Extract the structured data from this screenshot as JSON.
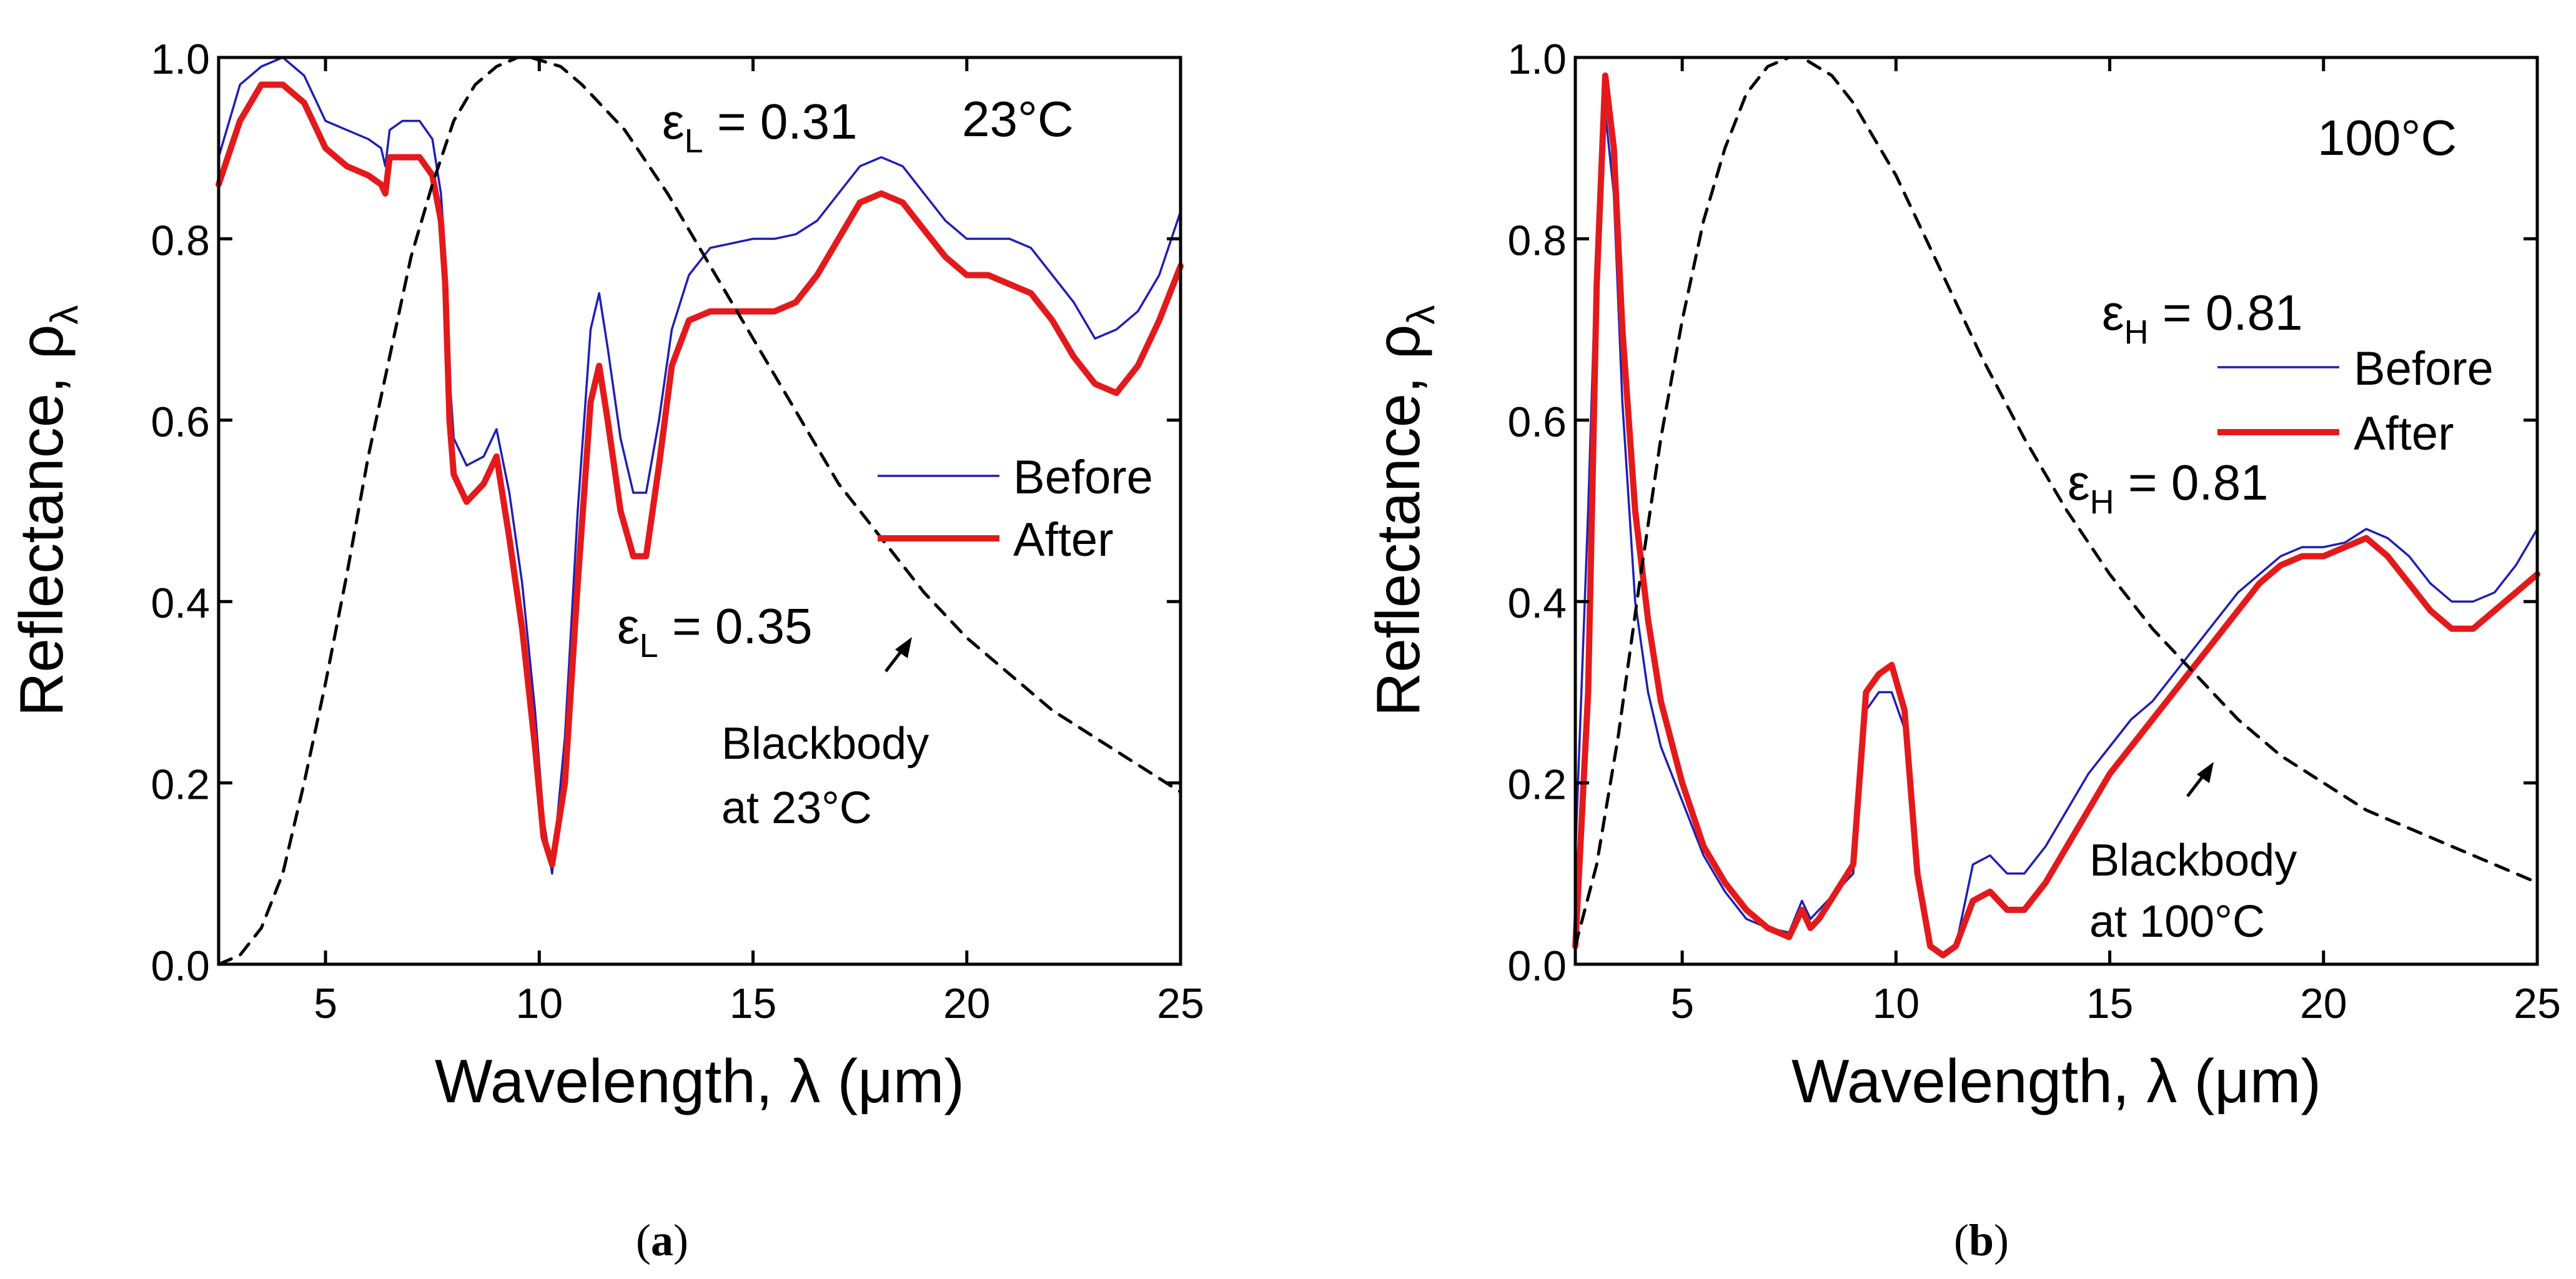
{
  "figure": {
    "captions": [
      {
        "open": "(",
        "letter": "a",
        "close": ")"
      },
      {
        "open": "(",
        "letter": "b",
        "close": ")"
      }
    ]
  },
  "chart_data": [
    {
      "type": "line",
      "panel": "a",
      "xlabel": "Wavelength, λ (μm)",
      "ylabel_main": "Reflectance, ρ",
      "ylabel_sub": "λ",
      "xlim": [
        2.5,
        25
      ],
      "ylim": [
        0,
        1
      ],
      "xticks": [
        5,
        10,
        15,
        20,
        25
      ],
      "yticks": [
        0.0,
        0.2,
        0.4,
        0.6,
        0.8,
        1.0
      ],
      "ytick_labels": [
        "0.0",
        "0.2",
        "0.4",
        "0.6",
        "0.8",
        "1.0"
      ],
      "legend": {
        "position": "center-right",
        "entries": [
          "Before",
          "After"
        ]
      },
      "series": [
        {
          "name": "Before",
          "color": "#1f1fb4",
          "style": "solid-thin",
          "x": [
            2.5,
            3.0,
            3.5,
            4.0,
            4.5,
            5.0,
            5.5,
            6.0,
            6.3,
            6.4,
            6.5,
            6.8,
            7.2,
            7.5,
            7.7,
            7.8,
            7.9,
            8.0,
            8.3,
            8.7,
            9.0,
            9.3,
            9.6,
            9.9,
            10.1,
            10.3,
            10.6,
            10.9,
            11.2,
            11.4,
            11.6,
            11.9,
            12.2,
            12.5,
            12.8,
            13.1,
            13.5,
            14.0,
            14.5,
            15.0,
            15.5,
            16.0,
            16.5,
            17.0,
            17.5,
            18.0,
            18.5,
            19.0,
            19.5,
            20.0,
            20.5,
            21.0,
            21.5,
            22.0,
            22.5,
            23.0,
            23.5,
            24.0,
            24.5,
            25.0
          ],
          "y": [
            0.89,
            0.97,
            0.99,
            1.0,
            0.98,
            0.93,
            0.92,
            0.91,
            0.9,
            0.88,
            0.92,
            0.93,
            0.93,
            0.91,
            0.85,
            0.78,
            0.65,
            0.58,
            0.55,
            0.56,
            0.59,
            0.52,
            0.42,
            0.28,
            0.16,
            0.1,
            0.25,
            0.5,
            0.7,
            0.74,
            0.68,
            0.58,
            0.52,
            0.52,
            0.6,
            0.7,
            0.76,
            0.79,
            0.795,
            0.8,
            0.8,
            0.805,
            0.82,
            0.85,
            0.88,
            0.89,
            0.88,
            0.85,
            0.82,
            0.8,
            0.8,
            0.8,
            0.79,
            0.76,
            0.73,
            0.69,
            0.7,
            0.72,
            0.76,
            0.83
          ]
        },
        {
          "name": "After",
          "color": "#e31a1c",
          "style": "solid-thick",
          "x": [
            2.5,
            3.0,
            3.5,
            4.0,
            4.5,
            5.0,
            5.5,
            6.0,
            6.3,
            6.4,
            6.5,
            6.8,
            7.2,
            7.5,
            7.7,
            7.8,
            7.9,
            8.0,
            8.3,
            8.7,
            9.0,
            9.3,
            9.6,
            9.9,
            10.1,
            10.3,
            10.6,
            10.9,
            11.2,
            11.4,
            11.6,
            11.9,
            12.2,
            12.5,
            12.8,
            13.1,
            13.5,
            14.0,
            14.5,
            15.0,
            15.5,
            16.0,
            16.5,
            17.0,
            17.5,
            18.0,
            18.5,
            19.0,
            19.5,
            20.0,
            20.5,
            21.0,
            21.5,
            22.0,
            22.5,
            23.0,
            23.5,
            24.0,
            24.5,
            25.0
          ],
          "y": [
            0.86,
            0.93,
            0.97,
            0.97,
            0.95,
            0.9,
            0.88,
            0.87,
            0.86,
            0.85,
            0.89,
            0.89,
            0.89,
            0.87,
            0.82,
            0.75,
            0.6,
            0.54,
            0.51,
            0.53,
            0.56,
            0.47,
            0.37,
            0.24,
            0.14,
            0.11,
            0.2,
            0.42,
            0.62,
            0.66,
            0.6,
            0.5,
            0.45,
            0.45,
            0.55,
            0.66,
            0.71,
            0.72,
            0.72,
            0.72,
            0.72,
            0.73,
            0.76,
            0.8,
            0.84,
            0.85,
            0.84,
            0.81,
            0.78,
            0.76,
            0.76,
            0.75,
            0.74,
            0.71,
            0.67,
            0.64,
            0.63,
            0.66,
            0.71,
            0.77
          ]
        },
        {
          "name": "Blackbody at 23°C",
          "color": "#000000",
          "style": "dashed",
          "x": [
            2.5,
            3.0,
            3.5,
            4.0,
            4.5,
            5.0,
            5.5,
            6.0,
            6.5,
            7.0,
            7.5,
            8.0,
            8.5,
            9.0,
            9.5,
            9.8,
            10.5,
            11.0,
            12.0,
            13.0,
            14.0,
            15.0,
            16.0,
            17.0,
            18.0,
            19.0,
            20.0,
            21.0,
            22.0,
            23.0,
            24.0,
            25.0
          ],
          "y": [
            0.0,
            0.01,
            0.04,
            0.1,
            0.2,
            0.31,
            0.43,
            0.56,
            0.67,
            0.78,
            0.86,
            0.93,
            0.97,
            0.99,
            1.0,
            1.0,
            0.99,
            0.97,
            0.92,
            0.85,
            0.77,
            0.69,
            0.61,
            0.53,
            0.47,
            0.41,
            0.36,
            0.32,
            0.28,
            0.25,
            0.22,
            0.19
          ]
        }
      ],
      "annotations": {
        "eps_before": {
          "base": "ε",
          "sub": "L",
          "value": " = 0.31",
          "color": "#1f1fb4"
        },
        "eps_after": {
          "base": "ε",
          "sub": "L",
          "value": " = 0.35",
          "color": "#e31a1c"
        },
        "temperature": "23°C",
        "blackbody_line1": "Blackbody",
        "blackbody_line2": "at 23°C"
      }
    },
    {
      "type": "line",
      "panel": "b",
      "xlabel": "Wavelength, λ (μm)",
      "ylabel_main": "Reflectance, ρ",
      "ylabel_sub": "λ",
      "xlim": [
        2.5,
        25
      ],
      "ylim": [
        0,
        1
      ],
      "xticks": [
        5,
        10,
        15,
        20,
        25
      ],
      "yticks": [
        0.0,
        0.2,
        0.4,
        0.6,
        0.8,
        1.0
      ],
      "ytick_labels": [
        "0.0",
        "0.2",
        "0.4",
        "0.6",
        "0.8",
        "1.0"
      ],
      "legend": {
        "position": "upper-right",
        "entries": [
          "Before",
          "After"
        ]
      },
      "series": [
        {
          "name": "Before",
          "color": "#1f1fb4",
          "style": "solid-thin",
          "x": [
            2.5,
            2.8,
            3.0,
            3.2,
            3.4,
            3.6,
            3.9,
            4.2,
            4.5,
            5.0,
            5.5,
            6.0,
            6.5,
            7.0,
            7.5,
            7.8,
            8.0,
            8.2,
            8.6,
            9.0,
            9.3,
            9.6,
            9.9,
            10.2,
            10.5,
            10.8,
            11.1,
            11.4,
            11.8,
            12.2,
            12.6,
            13.0,
            13.5,
            14.0,
            14.5,
            15.0,
            15.5,
            16.0,
            16.5,
            17.0,
            17.5,
            18.0,
            18.5,
            19.0,
            19.5,
            20.0,
            20.5,
            21.0,
            21.5,
            22.0,
            22.5,
            23.0,
            23.5,
            24.0,
            24.5,
            25.0
          ],
          "y": [
            0.12,
            0.5,
            0.8,
            0.94,
            0.85,
            0.62,
            0.4,
            0.3,
            0.24,
            0.18,
            0.12,
            0.08,
            0.05,
            0.04,
            0.035,
            0.07,
            0.05,
            0.06,
            0.08,
            0.1,
            0.28,
            0.3,
            0.3,
            0.26,
            0.1,
            0.02,
            0.01,
            0.02,
            0.11,
            0.12,
            0.1,
            0.1,
            0.13,
            0.17,
            0.21,
            0.24,
            0.27,
            0.29,
            0.32,
            0.35,
            0.38,
            0.41,
            0.43,
            0.45,
            0.46,
            0.46,
            0.465,
            0.48,
            0.47,
            0.45,
            0.42,
            0.4,
            0.4,
            0.41,
            0.44,
            0.48
          ]
        },
        {
          "name": "After",
          "color": "#e31a1c",
          "style": "solid-thick",
          "x": [
            2.5,
            2.8,
            3.0,
            3.2,
            3.4,
            3.6,
            3.9,
            4.2,
            4.5,
            5.0,
            5.5,
            6.0,
            6.5,
            7.0,
            7.5,
            7.8,
            8.0,
            8.2,
            8.6,
            9.0,
            9.3,
            9.6,
            9.9,
            10.2,
            10.5,
            10.8,
            11.1,
            11.4,
            11.8,
            12.2,
            12.6,
            13.0,
            13.5,
            14.0,
            14.5,
            15.0,
            15.5,
            16.0,
            16.5,
            17.0,
            17.5,
            18.0,
            18.5,
            19.0,
            19.5,
            20.0,
            20.5,
            21.0,
            21.5,
            22.0,
            22.5,
            23.0,
            23.5,
            24.0,
            24.5,
            25.0
          ],
          "y": [
            0.02,
            0.3,
            0.75,
            0.98,
            0.9,
            0.7,
            0.5,
            0.38,
            0.29,
            0.2,
            0.13,
            0.09,
            0.06,
            0.04,
            0.03,
            0.06,
            0.04,
            0.05,
            0.08,
            0.11,
            0.3,
            0.32,
            0.33,
            0.28,
            0.1,
            0.02,
            0.01,
            0.02,
            0.07,
            0.08,
            0.06,
            0.06,
            0.09,
            0.13,
            0.17,
            0.21,
            0.24,
            0.27,
            0.3,
            0.33,
            0.36,
            0.39,
            0.42,
            0.44,
            0.45,
            0.45,
            0.46,
            0.47,
            0.45,
            0.42,
            0.39,
            0.37,
            0.37,
            0.39,
            0.41,
            0.43
          ]
        },
        {
          "name": "Blackbody at 100°C",
          "color": "#000000",
          "style": "dashed",
          "x": [
            2.5,
            3.0,
            3.5,
            4.0,
            4.5,
            5.0,
            5.5,
            6.0,
            6.5,
            7.0,
            7.5,
            7.8,
            8.5,
            9.0,
            10.0,
            11.0,
            12.0,
            13.0,
            14.0,
            15.0,
            16.0,
            17.0,
            18.0,
            19.0,
            20.0,
            21.0,
            22.0,
            23.0,
            24.0,
            25.0
          ],
          "y": [
            0.02,
            0.11,
            0.25,
            0.42,
            0.58,
            0.71,
            0.82,
            0.9,
            0.96,
            0.99,
            1.0,
            1.0,
            0.98,
            0.95,
            0.87,
            0.77,
            0.67,
            0.58,
            0.5,
            0.43,
            0.37,
            0.32,
            0.27,
            0.23,
            0.2,
            0.17,
            0.15,
            0.13,
            0.11,
            0.09
          ]
        }
      ],
      "annotations": {
        "eps_before": {
          "base": "ε",
          "sub": "H",
          "value": " = 0.81",
          "color": "#1f1fb4"
        },
        "eps_after": {
          "base": "ε",
          "sub": "H",
          "value": " = 0.81",
          "color": "#e31a1c"
        },
        "temperature": "100°C",
        "blackbody_line1": "Blackbody",
        "blackbody_line2": "at 100°C"
      }
    }
  ]
}
